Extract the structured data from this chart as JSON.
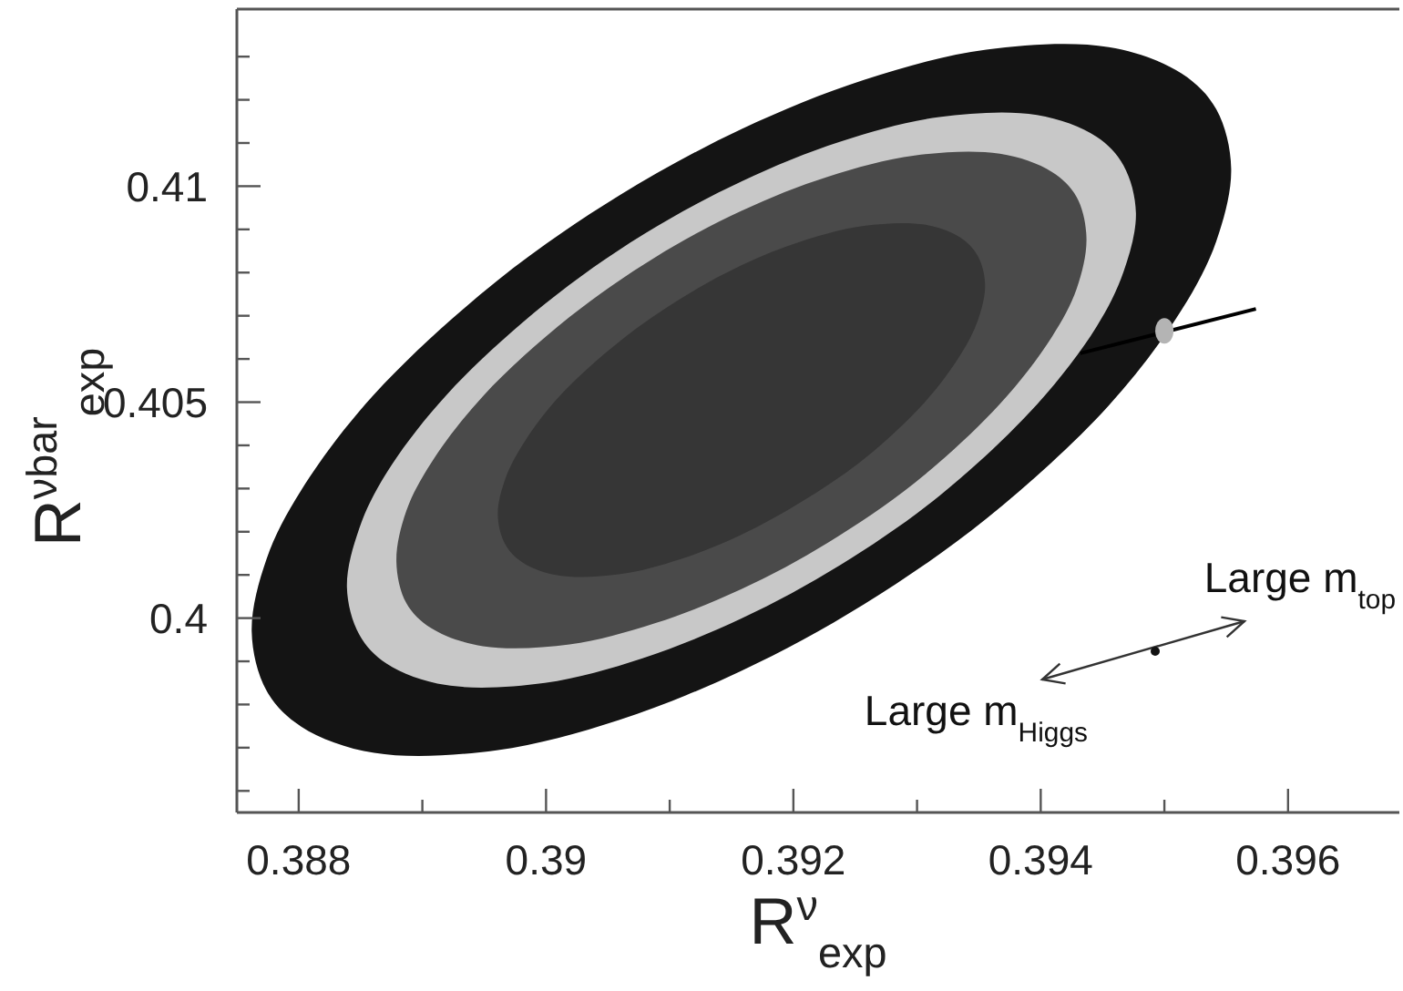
{
  "chart_data": {
    "type": "area",
    "xlabel": "R$^{ν}$$_{exp}$",
    "ylabel": "R$^{νbar}$$_{exp}$",
    "xlim": [
      0.3875,
      0.3969
    ],
    "ylim": [
      0.3955,
      0.4141
    ],
    "xticks": [
      0.388,
      {
        "value": 0.389,
        "label": null
      },
      0.39,
      {
        "value": 0.391,
        "label": null
      },
      0.392,
      {
        "value": 0.393,
        "label": null
      },
      0.394,
      {
        "value": 0.395,
        "label": null
      },
      0.396
    ],
    "yticks": [
      {
        "value": 0.396,
        "label": null
      },
      {
        "value": 0.397,
        "label": null
      },
      {
        "value": 0.398,
        "label": null
      },
      {
        "value": 0.399,
        "label": null
      },
      0.4,
      {
        "value": 0.401,
        "label": null
      },
      {
        "value": 0.402,
        "label": null
      },
      {
        "value": 0.403,
        "label": null
      },
      {
        "value": 0.404,
        "label": null
      },
      0.405,
      {
        "value": 0.406,
        "label": null
      },
      {
        "value": 0.407,
        "label": null
      },
      {
        "value": 0.408,
        "label": null
      },
      {
        "value": 0.409,
        "label": null
      },
      0.41,
      {
        "value": 0.411,
        "label": null
      },
      {
        "value": 0.412,
        "label": null
      },
      {
        "value": 0.413,
        "label": null
      }
    ],
    "grid": false,
    "series": [
      {
        "color": "#141414",
        "x": [
          0.38762,
          0.38774,
          0.38802,
          0.38861,
          0.3896,
          0.39059,
          0.39158,
          0.39257,
          0.39356,
          0.39455,
          0.39514,
          0.39542,
          0.39554,
          0.39542,
          0.39514,
          0.39455,
          0.39356,
          0.39257,
          0.39158,
          0.39059,
          0.3896,
          0.38861,
          0.38802,
          0.38774
        ],
        "values": [
          0.39969,
          0.39832,
          0.39749,
          0.39688,
          0.39694,
          0.39764,
          0.39878,
          0.40032,
          0.4023,
          0.40492,
          0.40714,
          0.40873,
          0.41041,
          0.41178,
          0.41261,
          0.41322,
          0.41316,
          0.41246,
          0.41132,
          0.40978,
          0.4078,
          0.40518,
          0.40296,
          0.40137
        ]
      },
      {
        "color": "#c8c8c8",
        "x": [
          0.38839,
          0.38849,
          0.38871,
          0.38919,
          0.38999,
          0.39078,
          0.39158,
          0.39238,
          0.39318,
          0.39397,
          0.39445,
          0.39467,
          0.39477,
          0.39467,
          0.39445,
          0.39397,
          0.39318,
          0.39238,
          0.39158,
          0.39078,
          0.38999,
          0.38919,
          0.38871,
          0.38849
        ],
        "values": [
          0.40072,
          0.39962,
          0.39895,
          0.39845,
          0.3985,
          0.39907,
          0.39999,
          0.40123,
          0.40283,
          0.40495,
          0.40674,
          0.40802,
          0.40938,
          0.41048,
          0.41115,
          0.41165,
          0.4116,
          0.41103,
          0.41011,
          0.40887,
          0.40727,
          0.40515,
          0.40336,
          0.40208
        ]
      },
      {
        "color": "#4a4a4a",
        "x": [
          0.38879,
          0.38887,
          0.38907,
          0.38949,
          0.39019,
          0.39088,
          0.39158,
          0.39228,
          0.39298,
          0.39367,
          0.39409,
          0.39429,
          0.39437,
          0.39429,
          0.39409,
          0.39367,
          0.39298,
          0.39228,
          0.39158,
          0.39088,
          0.39019,
          0.38949,
          0.38907,
          0.38887
        ],
        "values": [
          0.40131,
          0.40035,
          0.39977,
          0.39935,
          0.39939,
          0.39988,
          0.40067,
          0.40175,
          0.40313,
          0.40496,
          0.40651,
          0.40762,
          0.40879,
          0.40975,
          0.41033,
          0.41075,
          0.41071,
          0.41022,
          0.40943,
          0.40835,
          0.40697,
          0.40514,
          0.40359,
          0.40248
        ]
      },
      {
        "color": "#363636",
        "x": [
          0.38961,
          0.38967,
          0.38981,
          0.3901,
          0.3906,
          0.39109,
          0.39158,
          0.39207,
          0.39257,
          0.39306,
          0.39335,
          0.39349,
          0.39355,
          0.39349,
          0.39335,
          0.39306,
          0.39257,
          0.39207,
          0.39158,
          0.39109,
          0.3906,
          0.3901,
          0.38981,
          0.38967
        ],
        "values": [
          0.40239,
          0.40171,
          0.40129,
          0.40099,
          0.40102,
          0.40137,
          0.40193,
          0.4027,
          0.40368,
          0.40499,
          0.40609,
          0.40688,
          0.40772,
          0.40839,
          0.40881,
          0.40911,
          0.40908,
          0.40873,
          0.40817,
          0.4074,
          0.40642,
          0.40511,
          0.40401,
          0.40322
        ]
      },
      {
        "type": "line",
        "color": "#000000",
        "x": [
          0.39432,
          0.39574
        ],
        "values": [
          0.40613,
          0.40716
        ]
      },
      {
        "type": "scatter",
        "color": "#b4b4b4",
        "marker": "circle",
        "x": [
          0.395
        ],
        "values": [
          0.40665
        ]
      }
    ],
    "annotations": [
      "Large m$_{top}$",
      "Large m$_{Higgs}$"
    ]
  }
}
